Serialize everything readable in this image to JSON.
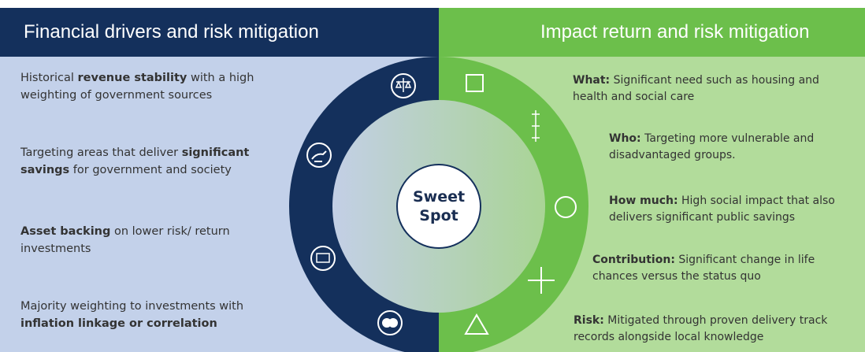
{
  "left": {
    "title": "Financial drivers and risk mitigation",
    "items": [
      [
        {
          "text": "Historical "
        },
        {
          "text": "revenue stability",
          "bold": true
        },
        {
          "text": " with a high weighting of government sources"
        }
      ],
      [
        {
          "text": "Targeting areas that deliver "
        },
        {
          "text": "significant savings",
          "bold": true
        },
        {
          "text": " for government and society"
        }
      ],
      [
        {
          "text": "Asset backing",
          "bold": true
        },
        {
          "text": " on lower risk/ return investments"
        }
      ],
      [
        {
          "text": "Majority weighting to investments with "
        },
        {
          "text": "inflation linkage or correlation",
          "bold": true
        }
      ]
    ]
  },
  "right": {
    "title": "Impact return and risk mitigation",
    "items": [
      {
        "label": "What:",
        "text": "Significant need such as housing and health and social care"
      },
      {
        "label": "Who:",
        "text": "Targeting more vulnerable and disadvantaged groups."
      },
      {
        "label": "How much:",
        "text": "High social impact that also delivers significant public savings"
      },
      {
        "label": "Contribution:",
        "text": "Significant change in life chances versus the status quo"
      },
      {
        "label": "Risk:",
        "text": "Mitigated through proven delivery track records alongside local knowledge"
      }
    ]
  },
  "center": {
    "line1": "Sweet",
    "line2": "Spot"
  }
}
